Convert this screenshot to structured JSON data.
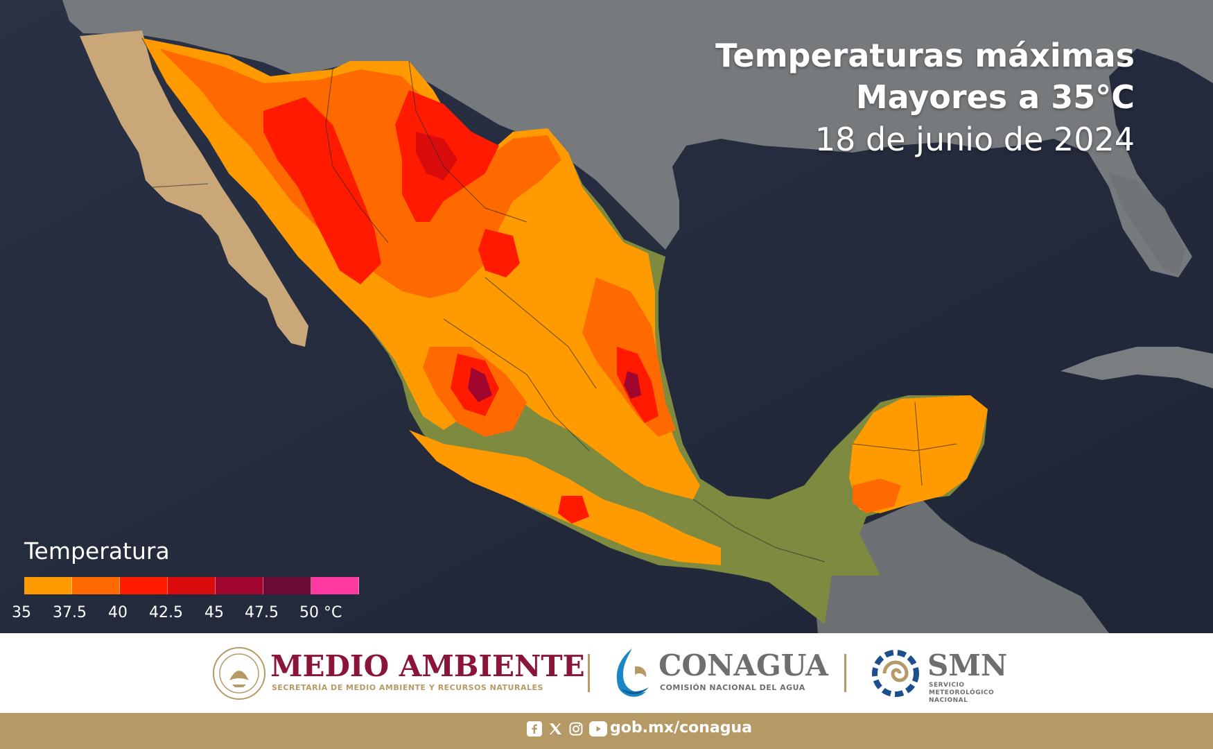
{
  "title": {
    "line1": "Temperaturas máximas",
    "line2": "Mayores a 35°C",
    "date": "18 de junio de 2024"
  },
  "legend": {
    "title": "Temperatura",
    "swatches": [
      {
        "from": "35",
        "color": "#ff9a00"
      },
      {
        "from": "37.5",
        "color": "#ff6a00"
      },
      {
        "from": "40",
        "color": "#ff1a00"
      },
      {
        "from": "42.5",
        "color": "#d90b0b"
      },
      {
        "from": "45",
        "color": "#a1072e"
      },
      {
        "from": "47.5",
        "color": "#6b0a35"
      },
      {
        "from": "50",
        "color": "#ff3aa0"
      }
    ],
    "labels": [
      "35",
      "37.5",
      "40",
      "42.5",
      "45",
      "47.5",
      "50 °C"
    ]
  },
  "footer": {
    "medio_ambiente": {
      "name": "MEDIO AMBIENTE",
      "subtitle": "SECRETARÍA DE MEDIO AMBIENTE Y RECURSOS NATURALES"
    },
    "conagua": {
      "name": "CONAGUA",
      "subtitle": "COMISIÓN NACIONAL DEL AGUA"
    },
    "smn": {
      "name": "SMN",
      "subtitle_1": "SERVICIO",
      "subtitle_2": "METEOROLÓGICO",
      "subtitle_3": "NACIONAL"
    },
    "social_icons": [
      "facebook-icon",
      "x-icon",
      "instagram-icon",
      "youtube-icon"
    ],
    "url": "gob.mx/conagua"
  },
  "colors": {
    "ocean": "#262c3d",
    "land_gray": "#6f7274",
    "brand_maroon": "#8a1538",
    "brand_gold": "#b69a66",
    "conagua_gray": "#6b6f72"
  }
}
